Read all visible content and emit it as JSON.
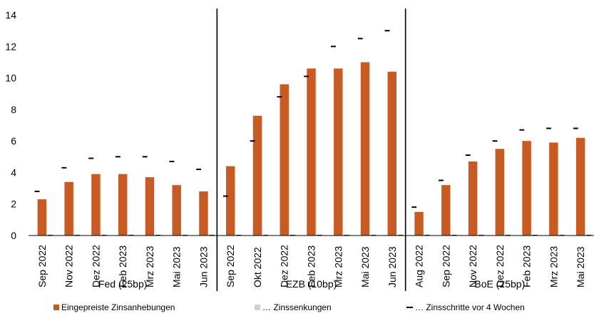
{
  "chart_data": {
    "type": "bar",
    "y_ticks": [
      0,
      2,
      4,
      6,
      8,
      10,
      12,
      14
    ],
    "ylim": [
      0,
      14
    ],
    "grid": false,
    "legend_position": "bottom",
    "colors": {
      "priced_hikes": "#C85A24",
      "priced_cuts": "#D0D0D0",
      "four_weeks_ago": "#000000"
    },
    "series_names": {
      "priced_hikes": "Eingepreiste Zinsanhebungen",
      "priced_cuts": "… Zinssenkungen",
      "four_weeks_ago": "… Zinsschritte vor 4 Wochen"
    },
    "groups": [
      {
        "name": "Fed (25bp)",
        "categories": [
          "Sep 2022",
          "Nov 2022",
          "Dez 2022",
          "Feb 2023",
          "Mrz 2023",
          "Mai 2023",
          "Jun 2023"
        ],
        "priced_hikes": [
          2.3,
          3.4,
          3.9,
          3.9,
          3.7,
          3.2,
          2.8
        ],
        "priced_cuts": [
          0,
          0,
          0,
          0,
          0,
          0,
          0
        ],
        "four_weeks_ago": [
          2.8,
          4.3,
          4.9,
          5.0,
          5.0,
          4.7,
          4.2
        ]
      },
      {
        "name": "EZB (10bp)",
        "categories": [
          "Sep 2022",
          "Okt 2022",
          "Dez 2022",
          "Feb 2023",
          "Mrz 2023",
          "Mai 2023",
          "Jun 2023"
        ],
        "priced_hikes": [
          4.4,
          7.6,
          9.6,
          10.6,
          10.6,
          11.0,
          10.4
        ],
        "priced_cuts": [
          0,
          0,
          0,
          0,
          0,
          0,
          0
        ],
        "four_weeks_ago": [
          2.5,
          6.0,
          8.8,
          10.1,
          12.0,
          12.5,
          13.0
        ]
      },
      {
        "name": "BoE (25bp)",
        "categories": [
          "Aug 2022",
          "Sep 2022",
          "Nov 2022",
          "Dez 2022",
          "Feb 2023",
          "Mrz 2023",
          "Mai 2023"
        ],
        "priced_hikes": [
          1.5,
          3.2,
          4.7,
          5.5,
          6.0,
          5.9,
          6.2
        ],
        "priced_cuts": [
          0,
          0,
          0,
          0,
          0,
          0,
          0
        ],
        "four_weeks_ago": [
          1.8,
          3.5,
          5.1,
          6.0,
          6.7,
          6.8,
          6.8
        ]
      }
    ]
  }
}
